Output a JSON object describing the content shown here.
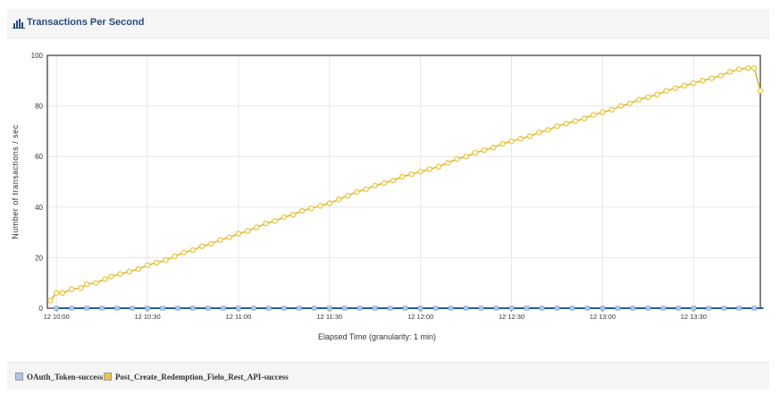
{
  "panel": {
    "title": "Transactions Per Second",
    "icon": "bar-chart-icon"
  },
  "chart_data": {
    "type": "line",
    "title": "Transactions Per Second",
    "xlabel": "Elapsed Time (granularity: 1 min)",
    "ylabel": "Number of transactions / sec",
    "ylim": [
      0,
      100
    ],
    "xlim_minutes": [
      597,
      832
    ],
    "y_ticks": [
      0,
      20,
      40,
      60,
      80,
      100
    ],
    "x_ticks": [
      "12 10:00",
      "12 10:30",
      "12 11:00",
      "12 11:30",
      "12 12:00",
      "12 12:30",
      "12 13:00",
      "12 13:30"
    ],
    "x_tick_minutes": [
      600,
      630,
      660,
      690,
      720,
      750,
      780,
      810
    ],
    "grid": true,
    "legend_position": "bottom",
    "series": [
      {
        "name": "OAuth_Token-success",
        "color": "#aec7e8",
        "line_color": "#2a5c8a",
        "x_start": "12 10:00",
        "x_end": "12 13:53",
        "y_constant": 0,
        "marker_interval_minutes": 5
      },
      {
        "name": "Post_Create_Redemption_Fielo_Rest_API-success",
        "color": "#e8c84a",
        "x_start": "12 09:58",
        "x_end": "12 13:52",
        "points": [
          [
            "12 09:58",
            3
          ],
          [
            "12 10:00",
            6
          ],
          [
            "12 10:02",
            6
          ],
          [
            "12 10:05",
            7.5
          ],
          [
            "12 10:08",
            8
          ],
          [
            "12 10:10",
            9.5
          ],
          [
            "12 10:13",
            10
          ],
          [
            "12 10:16",
            11.5
          ],
          [
            "12 10:18",
            12.5
          ],
          [
            "12 10:21",
            13.5
          ],
          [
            "12 10:24",
            14.5
          ],
          [
            "12 10:27",
            15.5
          ],
          [
            "12 10:30",
            17
          ],
          [
            "12 10:33",
            18
          ],
          [
            "12 10:36",
            19
          ],
          [
            "12 10:39",
            20.5
          ],
          [
            "12 10:42",
            22
          ],
          [
            "12 10:45",
            23
          ],
          [
            "12 10:48",
            24.5
          ],
          [
            "12 10:51",
            25.5
          ],
          [
            "12 10:54",
            27
          ],
          [
            "12 10:57",
            28
          ],
          [
            "12 11:00",
            29.5
          ],
          [
            "12 11:03",
            30.5
          ],
          [
            "12 11:06",
            32
          ],
          [
            "12 11:09",
            33.5
          ],
          [
            "12 11:12",
            34.5
          ],
          [
            "12 11:15",
            36
          ],
          [
            "12 11:18",
            37
          ],
          [
            "12 11:21",
            38.5
          ],
          [
            "12 11:24",
            39.5
          ],
          [
            "12 11:27",
            40.5
          ],
          [
            "12 11:30",
            41.5
          ],
          [
            "12 11:33",
            43
          ],
          [
            "12 11:36",
            44.5
          ],
          [
            "12 11:39",
            46
          ],
          [
            "12 11:42",
            47
          ],
          [
            "12 11:45",
            48.5
          ],
          [
            "12 11:48",
            49.5
          ],
          [
            "12 11:51",
            50.5
          ],
          [
            "12 11:54",
            52
          ],
          [
            "12 11:57",
            53
          ],
          [
            "12 12:00",
            54
          ],
          [
            "12 12:03",
            55
          ],
          [
            "12 12:06",
            56
          ],
          [
            "12 12:09",
            57.5
          ],
          [
            "12 12:12",
            59
          ],
          [
            "12 12:15",
            60
          ],
          [
            "12 12:18",
            61.5
          ],
          [
            "12 12:21",
            62.5
          ],
          [
            "12 12:24",
            63.5
          ],
          [
            "12 12:27",
            65
          ],
          [
            "12 12:30",
            66
          ],
          [
            "12 12:33",
            67
          ],
          [
            "12 12:36",
            68
          ],
          [
            "12 12:39",
            69.5
          ],
          [
            "12 12:42",
            70.5
          ],
          [
            "12 12:45",
            72
          ],
          [
            "12 12:48",
            73
          ],
          [
            "12 12:51",
            74
          ],
          [
            "12 12:54",
            75
          ],
          [
            "12 12:57",
            76.5
          ],
          [
            "12 13:00",
            77.5
          ],
          [
            "12 13:03",
            78.5
          ],
          [
            "12 13:06",
            80
          ],
          [
            "12 13:09",
            81
          ],
          [
            "12 13:12",
            82.5
          ],
          [
            "12 13:15",
            83.5
          ],
          [
            "12 13:18",
            84.5
          ],
          [
            "12 13:21",
            86
          ],
          [
            "12 13:24",
            87
          ],
          [
            "12 13:27",
            88
          ],
          [
            "12 13:30",
            89
          ],
          [
            "12 13:33",
            90
          ],
          [
            "12 13:36",
            91
          ],
          [
            "12 13:39",
            92
          ],
          [
            "12 13:42",
            93.5
          ],
          [
            "12 13:45",
            94.5
          ],
          [
            "12 13:48",
            95
          ],
          [
            "12 13:50",
            95
          ],
          [
            "12 13:52",
            86
          ]
        ]
      }
    ]
  }
}
